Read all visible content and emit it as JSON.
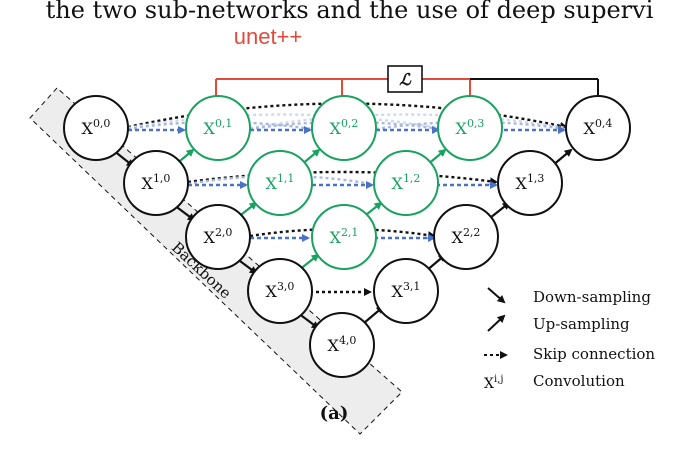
{
  "header_text": "the two sub-networks and the use of deep supervi",
  "title": "unet++",
  "loss_symbol": "ℒ",
  "backbone_label": "Backbone",
  "caption": "(a)",
  "colors": {
    "black": "#111111",
    "green": "#1aa260",
    "red": "#e24a3b",
    "blue": "#4a73c8",
    "backbone_fill": "#ededed"
  },
  "nodes": [
    {
      "id": "x00",
      "base": "X",
      "sup": "0,0",
      "color": "black"
    },
    {
      "id": "x10",
      "base": "X",
      "sup": "1,0",
      "color": "black"
    },
    {
      "id": "x20",
      "base": "X",
      "sup": "2,0",
      "color": "black"
    },
    {
      "id": "x30",
      "base": "X",
      "sup": "3,0",
      "color": "black"
    },
    {
      "id": "x40",
      "base": "X",
      "sup": "4,0",
      "color": "black"
    },
    {
      "id": "x01",
      "base": "X",
      "sup": "0,1",
      "color": "green"
    },
    {
      "id": "x02",
      "base": "X",
      "sup": "0,2",
      "color": "green"
    },
    {
      "id": "x03",
      "base": "X",
      "sup": "0,3",
      "color": "green"
    },
    {
      "id": "x11",
      "base": "X",
      "sup": "1,1",
      "color": "green"
    },
    {
      "id": "x12",
      "base": "X",
      "sup": "1,2",
      "color": "green"
    },
    {
      "id": "x21",
      "base": "X",
      "sup": "2,1",
      "color": "green"
    },
    {
      "id": "x04",
      "base": "X",
      "sup": "0,4",
      "color": "black"
    },
    {
      "id": "x13",
      "base": "X",
      "sup": "1,3",
      "color": "black"
    },
    {
      "id": "x22",
      "base": "X",
      "sup": "2,2",
      "color": "black"
    },
    {
      "id": "x31",
      "base": "X",
      "sup": "3,1",
      "color": "black"
    }
  ],
  "legend": [
    {
      "key": "down",
      "label": "Down-sampling"
    },
    {
      "key": "up",
      "label": "Up-sampling"
    },
    {
      "key": "skip",
      "label": "Skip connection"
    },
    {
      "key": "conv",
      "label": "Convolution",
      "symbol_base": "X",
      "symbol_sup": "i,j"
    }
  ]
}
